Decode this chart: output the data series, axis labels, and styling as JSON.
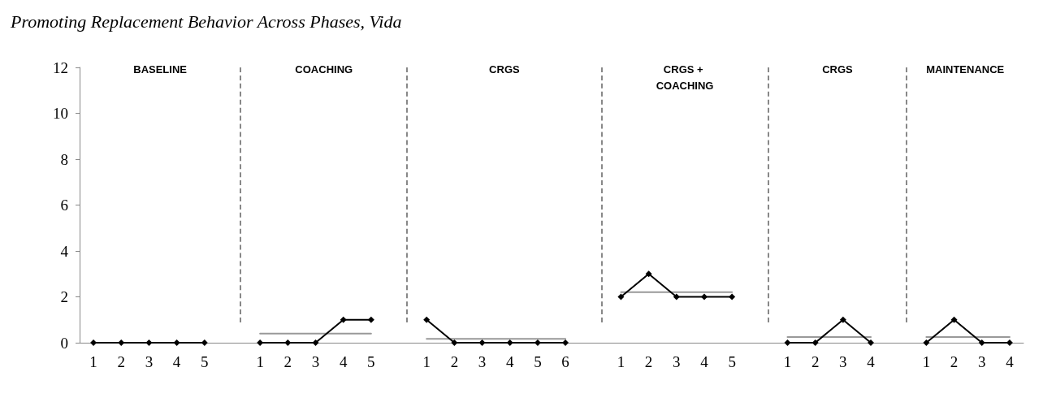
{
  "chart_data": {
    "type": "line",
    "title": "Promoting Replacement Behavior Across Phases, Vida",
    "categories": [
      "1",
      "2",
      "3",
      "4",
      "5",
      null,
      "1",
      "2",
      "3",
      "4",
      "5",
      null,
      "1",
      "2",
      "3",
      "4",
      "5",
      "6",
      null,
      "1",
      "2",
      "3",
      "4",
      "5",
      null,
      "1",
      "2",
      "3",
      "4",
      null,
      "1",
      "2",
      "3",
      "4"
    ],
    "series": [
      {
        "color": "#000000",
        "marker": "diamond",
        "values": [
          0,
          0,
          0,
          0,
          0,
          null,
          0,
          0,
          0,
          1,
          1,
          null,
          1,
          0,
          0,
          0,
          0,
          0,
          null,
          2,
          3,
          2,
          2,
          2,
          null,
          0,
          0,
          1,
          0,
          null,
          0,
          1,
          0,
          0
        ]
      },
      {
        "color": "#999999",
        "marker": "none",
        "values": [
          0,
          0,
          0,
          0,
          0,
          null,
          0.4,
          0.4,
          0.4,
          0.4,
          0.4,
          null,
          0.17,
          0.17,
          0.17,
          0.17,
          0.17,
          0.17,
          null,
          2.2,
          2.2,
          2.2,
          2.2,
          2.2,
          null,
          0.25,
          0.25,
          0.25,
          0.25,
          null,
          0.25,
          0.25,
          0.25,
          0.25
        ]
      }
    ],
    "ylim": [
      0,
      12
    ],
    "yticks": [
      0,
      2,
      4,
      6,
      8,
      10,
      12
    ],
    "annotations": [
      "BASELINE",
      "COACHING",
      "CRGS",
      "CRGS + COACHING",
      "CRGS",
      "MAINTENANCE"
    ],
    "grid": false
  }
}
